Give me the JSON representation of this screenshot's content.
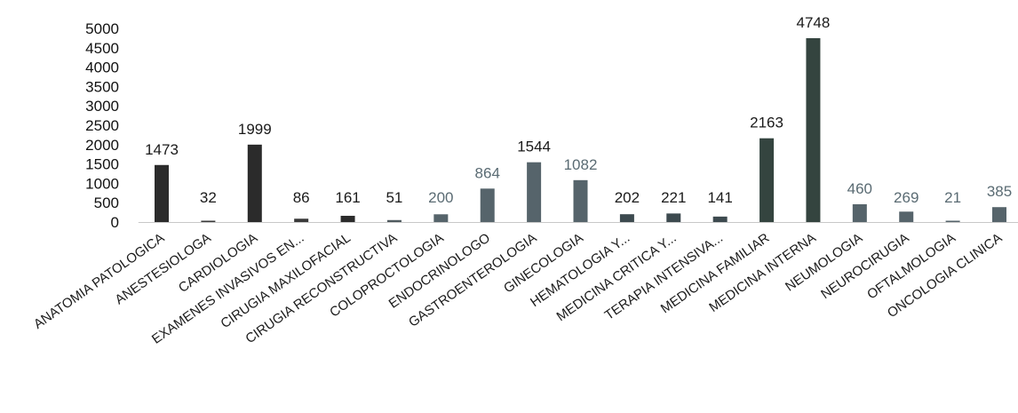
{
  "chart_data": {
    "type": "bar",
    "title": "",
    "xlabel": "",
    "ylabel": "",
    "ylim": [
      0,
      5000
    ],
    "yticks": [
      0,
      500,
      1000,
      1500,
      2000,
      2500,
      3000,
      3500,
      4000,
      4500,
      5000
    ],
    "grid": false,
    "legend": "none",
    "categories": [
      "ANATOMIA PATOLOGICA",
      "ANESTESIOLOGA",
      "CARDIOLOGIA",
      "EXAMENES INVASIVOS EN...",
      "CIRUGIA MAXILOFACIAL",
      "CIRUGIA RECONSTRUCTIVA",
      "COLOPROCTOLOGIA",
      "ENDOCRINOLOGO",
      "GASTROENTEROLOGIA",
      "GINECOLOGIA",
      "HEMATOLOGIA Y...",
      "MEDICINA CRITICA Y...",
      "TERAPIA INTENSIVA...",
      "MEDICINA FAMILIAR",
      "MEDICINA INTERNA",
      "NEUMOLOGIA",
      "NEUROCIRUGIA",
      "OFTALMOLOGIA",
      "ONCOLOGIA CLINICA"
    ],
    "values": [
      1473,
      32,
      1999,
      86,
      161,
      51,
      200,
      864,
      1544,
      1082,
      202,
      221,
      141,
      2163,
      4748,
      460,
      269,
      21,
      385
    ],
    "bar_colors": [
      "#2b2b2b",
      "#3a3a3a",
      "#2b2b2b",
      "#3a3a3a",
      "#2b2b2b",
      "#4f5a5f",
      "#56646b",
      "#56646b",
      "#56646b",
      "#56646b",
      "#3d4a4f",
      "#3d4a4f",
      "#3d4a4f",
      "#34443f",
      "#34443f",
      "#56646b",
      "#56646b",
      "#56646b",
      "#56646b"
    ],
    "label_colors": [
      "#1a1a1a",
      "#1a1a1a",
      "#1a1a1a",
      "#1a1a1a",
      "#1a1a1a",
      "#1a1a1a",
      "#5a6b73",
      "#5a6b73",
      "#1a1a1a",
      "#5a6b73",
      "#1a1a1a",
      "#1a1a1a",
      "#1a1a1a",
      "#1a1a1a",
      "#1a1a1a",
      "#5a6b73",
      "#5a6b73",
      "#5a6b73",
      "#5a6b73"
    ]
  }
}
